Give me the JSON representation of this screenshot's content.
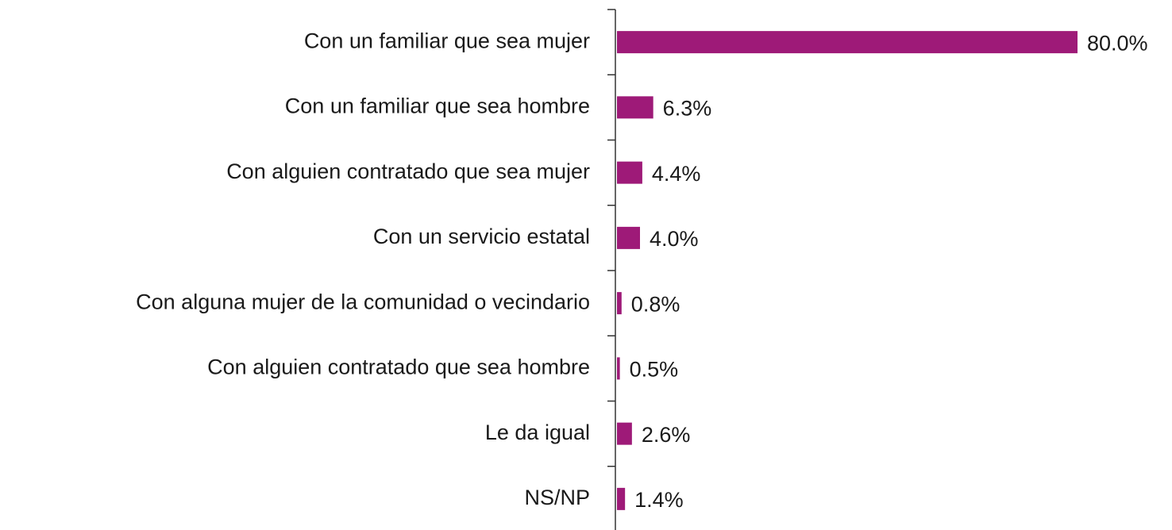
{
  "chart_data": {
    "type": "bar",
    "orientation": "horizontal",
    "categories": [
      "Con un familiar que sea mujer",
      "Con un familiar que sea hombre",
      "Con alguien contratado que sea mujer",
      "Con un servicio estatal",
      "Con alguna mujer de la comunidad o vecindario",
      "Con alguien contratado que sea hombre",
      "Le da igual",
      "NS/NP"
    ],
    "values": [
      80.0,
      6.3,
      4.4,
      4.0,
      0.8,
      0.5,
      2.6,
      1.4
    ],
    "value_labels": [
      "80.0%",
      "6.3%",
      "4.4%",
      "4.0%",
      "0.8%",
      "0.5%",
      "2.6%",
      "1.4%"
    ],
    "color": "#9e1a78"
  }
}
